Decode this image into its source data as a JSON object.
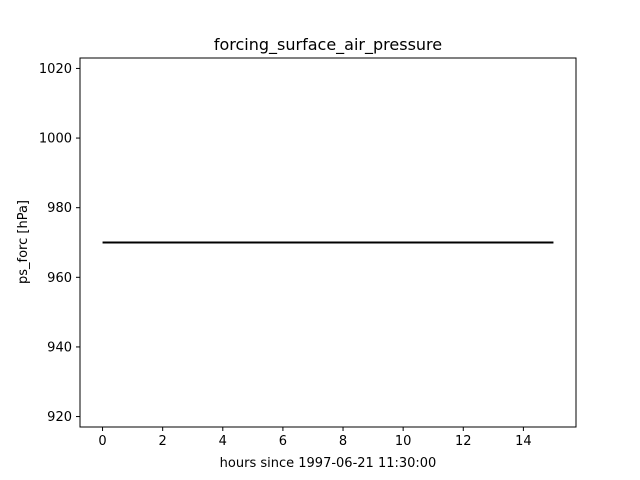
{
  "chart_data": {
    "type": "line",
    "title": "forcing_surface_air_pressure",
    "xlabel": "hours since 1997-06-21 11:30:00",
    "ylabel": "ps_forc [hPa]",
    "xlim": [
      -0.75,
      15.75
    ],
    "ylim": [
      917,
      1023
    ],
    "xticks": [
      0,
      2,
      4,
      6,
      8,
      10,
      12,
      14
    ],
    "yticks": [
      920,
      940,
      960,
      980,
      1000,
      1020
    ],
    "grid": false,
    "series": [
      {
        "color": "#000000",
        "x": [
          0,
          15
        ],
        "y": [
          970,
          970
        ]
      }
    ]
  }
}
